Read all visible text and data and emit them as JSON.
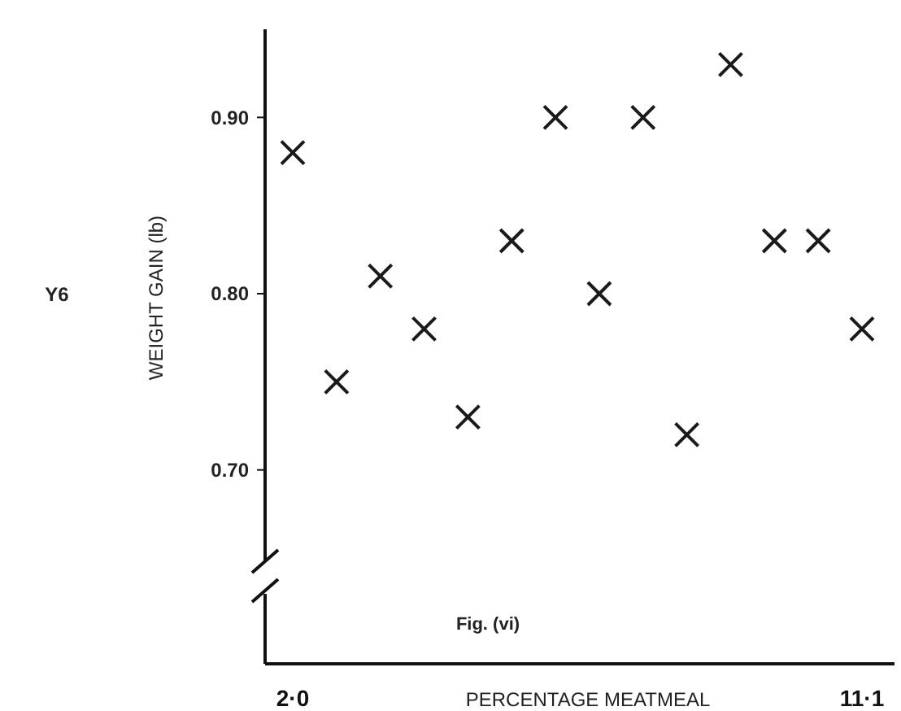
{
  "chart_data": {
    "type": "scatter",
    "xlabel": "PERCENTAGE MEATMEAL",
    "ylabel": "WEIGHT GAIN (lb)",
    "annotations": [
      "Y6",
      "Fig. (vi)"
    ],
    "categories": [
      "2·0",
      null,
      null,
      null,
      null,
      null,
      null,
      null,
      null,
      null,
      null,
      null,
      null,
      "11·1"
    ],
    "values": [
      0.88,
      0.75,
      0.81,
      0.78,
      0.73,
      0.83,
      0.9,
      0.8,
      0.9,
      0.72,
      0.93,
      0.83,
      0.83,
      0.78
    ],
    "color": "#1a1a1a",
    "marker": "cross",
    "ylim": [
      0.59,
      0.95
    ],
    "yticks": [
      {
        "value": 0.7,
        "label": "0.70"
      },
      {
        "value": 0.8,
        "label": "0.80"
      },
      {
        "value": 0.9,
        "label": "0.90"
      }
    ]
  }
}
